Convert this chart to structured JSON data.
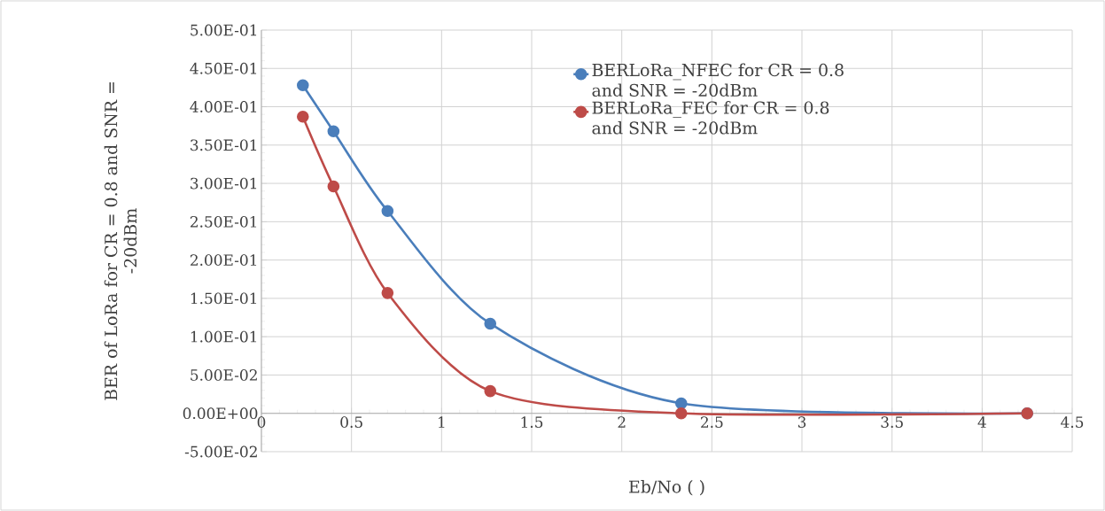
{
  "chart_data": {
    "type": "line",
    "xlabel": "Eb/No ( )",
    "ylabel": "BER of LoRa for CR =  0.8 and SNR = -20dBm",
    "x": [
      0.23,
      0.4,
      0.7,
      1.27,
      2.33,
      4.25
    ],
    "series": [
      {
        "name": "BERLoRa_NFEC for CR =  0.8 and SNR = -20dBm",
        "color": "#4a7ebb",
        "values": [
          0.428,
          0.368,
          0.264,
          0.117,
          0.013,
          0
        ]
      },
      {
        "name": "BERLoRa_FEC for CR =  0.8 and SNR = -20dBm",
        "color": "#be4b48",
        "values": [
          0.387,
          0.296,
          0.157,
          0.029,
          0,
          0
        ]
      }
    ],
    "xlim": [
      0,
      4.5
    ],
    "xticks": [
      0,
      0.5,
      1,
      1.5,
      2,
      2.5,
      3,
      3.5,
      4,
      4.5
    ],
    "ylim": [
      -0.05,
      0.5
    ],
    "yticks": [
      {
        "value": -0.05,
        "label": "-5.00E-02"
      },
      {
        "value": 0,
        "label": "0.00E+00"
      },
      {
        "value": 0.05,
        "label": "5.00E-02"
      },
      {
        "value": 0.1,
        "label": "1.00E-01"
      },
      {
        "value": 0.15,
        "label": "1.50E-01"
      },
      {
        "value": 0.2,
        "label": "2.00E-01"
      },
      {
        "value": 0.25,
        "label": "2.50E-01"
      },
      {
        "value": 0.3,
        "label": "3.00E-01"
      },
      {
        "value": 0.35,
        "label": "3.50E-01"
      },
      {
        "value": 0.4,
        "label": "4.00E-01"
      },
      {
        "value": 0.45,
        "label": "4.50E-01"
      },
      {
        "value": 0.5,
        "label": "5.00E-01"
      }
    ],
    "grid": true,
    "legend": "top right",
    "marker": "circle",
    "line_style": "solid"
  }
}
